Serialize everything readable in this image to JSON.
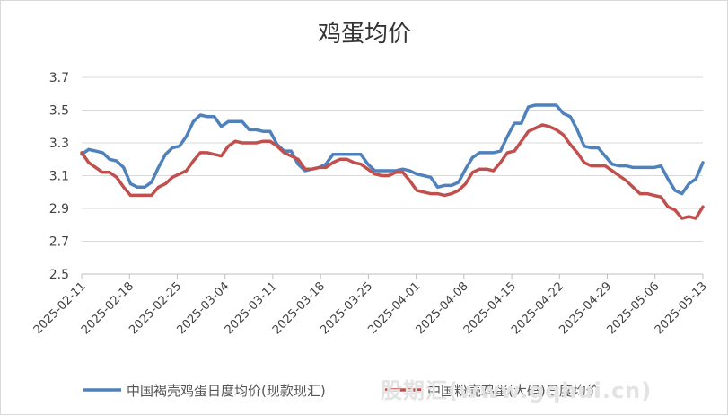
{
  "chart_data": {
    "type": "line",
    "title": "鸡蛋均价",
    "ylim": [
      2.5,
      3.7
    ],
    "yticks": [
      "2.5",
      "2.7",
      "2.9",
      "3.1",
      "3.3",
      "3.5",
      "3.7"
    ],
    "xticks": [
      "2025-02-11",
      "2025-02-18",
      "2025-02-25",
      "2025-03-04",
      "2025-03-11",
      "2025-03-18",
      "2025-03-25",
      "2025-04-01",
      "2025-04-08",
      "2025-04-15",
      "2025-04-22",
      "2025-04-29",
      "2025-05-06",
      "2025-05-13"
    ],
    "grid": "horizontal",
    "legend_position": "bottom",
    "series": [
      {
        "name": "中国褐壳鸡蛋日度均价(现款现汇)",
        "color": "#4f81bd",
        "values": [
          3.23,
          3.26,
          3.25,
          3.24,
          3.2,
          3.19,
          3.15,
          3.05,
          3.03,
          3.03,
          3.06,
          3.15,
          3.23,
          3.27,
          3.28,
          3.34,
          3.43,
          3.47,
          3.46,
          3.46,
          3.4,
          3.43,
          3.43,
          3.43,
          3.38,
          3.38,
          3.37,
          3.37,
          3.29,
          3.25,
          3.25,
          3.17,
          3.13,
          3.14,
          3.15,
          3.17,
          3.23,
          3.23,
          3.23,
          3.23,
          3.23,
          3.17,
          3.13,
          3.13,
          3.13,
          3.13,
          3.14,
          3.13,
          3.11,
          3.1,
          3.09,
          3.03,
          3.04,
          3.04,
          3.06,
          3.14,
          3.21,
          3.24,
          3.24,
          3.24,
          3.25,
          3.34,
          3.42,
          3.42,
          3.52,
          3.53,
          3.53,
          3.53,
          3.53,
          3.48,
          3.46,
          3.38,
          3.28,
          3.27,
          3.27,
          3.22,
          3.17,
          3.16,
          3.16,
          3.15,
          3.15,
          3.15,
          3.15,
          3.16,
          3.08,
          3.01,
          2.99,
          3.05,
          3.08,
          3.18
        ]
      },
      {
        "name": "中国粉壳鸡蛋(大码)日度均价",
        "color": "#c0504d",
        "values": [
          3.24,
          3.18,
          3.15,
          3.12,
          3.12,
          3.09,
          3.03,
          2.98,
          2.98,
          2.98,
          2.98,
          3.03,
          3.05,
          3.09,
          3.11,
          3.13,
          3.19,
          3.24,
          3.24,
          3.23,
          3.22,
          3.28,
          3.31,
          3.3,
          3.3,
          3.3,
          3.31,
          3.31,
          3.28,
          3.24,
          3.22,
          3.2,
          3.14,
          3.14,
          3.15,
          3.15,
          3.18,
          3.2,
          3.2,
          3.18,
          3.17,
          3.14,
          3.11,
          3.1,
          3.1,
          3.12,
          3.12,
          3.07,
          3.01,
          3.0,
          2.99,
          2.99,
          2.98,
          2.99,
          3.01,
          3.05,
          3.12,
          3.14,
          3.14,
          3.13,
          3.18,
          3.24,
          3.25,
          3.31,
          3.37,
          3.39,
          3.41,
          3.4,
          3.38,
          3.35,
          3.29,
          3.24,
          3.18,
          3.16,
          3.16,
          3.16,
          3.13,
          3.1,
          3.07,
          3.03,
          2.99,
          2.99,
          2.98,
          2.97,
          2.91,
          2.89,
          2.84,
          2.85,
          2.84,
          2.91
        ]
      }
    ]
  },
  "watermark": "股期汇(www.gqhui.cn)"
}
